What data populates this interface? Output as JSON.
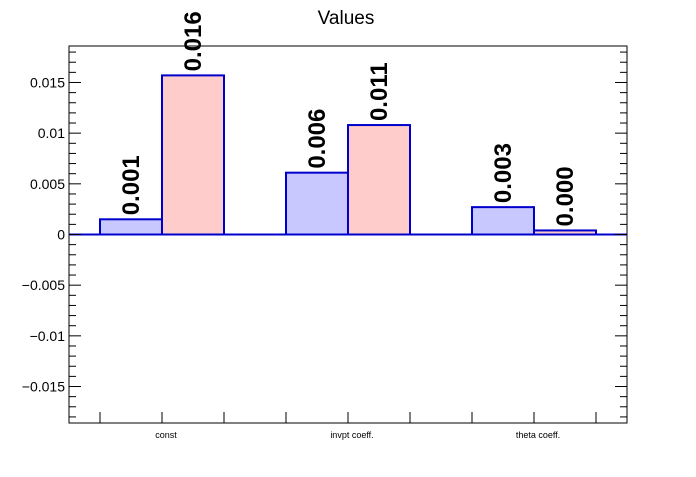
{
  "chart_data": {
    "type": "bar",
    "title": "Values",
    "xlabel": "",
    "ylabel": "",
    "categories": [
      "const",
      "invpt coeff.",
      "theta coeff."
    ],
    "series": [
      {
        "values": [
          0.0015,
          0.0061,
          0.0027
        ],
        "labels": [
          "0.001",
          "0.006",
          "0.003"
        ],
        "color": "#c8c8ff"
      },
      {
        "values": [
          0.0157,
          0.0108,
          0.0004
        ],
        "labels": [
          "0.016",
          "0.011",
          "0.000"
        ],
        "color": "#ffcccc"
      }
    ],
    "bar_edge_color": "#0000cc",
    "ylim": [
      -0.0186,
      0.0186
    ],
    "yticks": [
      {
        "value": -0.015,
        "label": "−0.015"
      },
      {
        "value": -0.01,
        "label": "−0.01"
      },
      {
        "value": -0.005,
        "label": "−0.005"
      },
      {
        "value": 0,
        "label": "0"
      },
      {
        "value": 0.005,
        "label": "0.005"
      },
      {
        "value": 0.01,
        "label": "0.01"
      },
      {
        "value": 0.015,
        "label": "0.015"
      }
    ],
    "grid": false,
    "legend": "none"
  }
}
